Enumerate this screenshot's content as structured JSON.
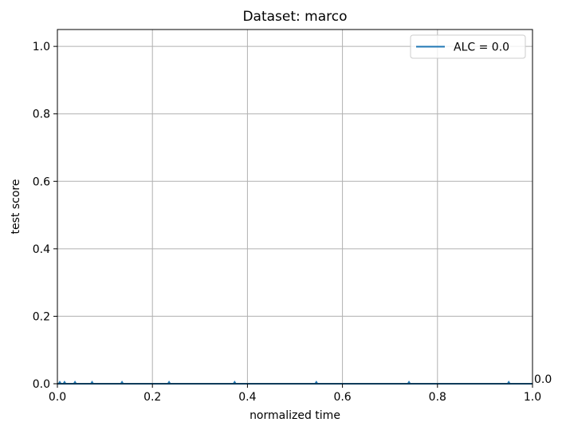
{
  "chart_data": {
    "type": "line",
    "title": "Dataset: marco",
    "xlabel": "normalized time",
    "ylabel": "test score",
    "xlim": [
      0.0,
      1.0
    ],
    "ylim": [
      0.0,
      1.05
    ],
    "x_ticks": [
      0.0,
      0.2,
      0.4,
      0.6,
      0.8,
      1.0
    ],
    "x_tick_labels": [
      "0.0",
      "0.2",
      "0.4",
      "0.6",
      "0.8",
      "1.0"
    ],
    "y_ticks": [
      0.0,
      0.2,
      0.4,
      0.6,
      0.8,
      1.0
    ],
    "y_tick_labels": [
      "0.0",
      "0.2",
      "0.4",
      "0.6",
      "0.8",
      "1.0"
    ],
    "grid": true,
    "legend_position": "top-right",
    "series": [
      {
        "name": "ALC = 0.0",
        "color": "#1f77b4",
        "marker": "triangle-up",
        "x": [
          0.0,
          0.005,
          0.015,
          0.037,
          0.073,
          0.136,
          0.235,
          0.373,
          0.545,
          0.74,
          0.95,
          1.0
        ],
        "y": [
          0.0,
          0.0,
          0.0,
          0.0,
          0.0,
          0.0,
          0.0,
          0.0,
          0.0,
          0.0,
          0.0,
          0.0
        ],
        "markers_x": [
          0.005,
          0.015,
          0.037,
          0.073,
          0.136,
          0.235,
          0.373,
          0.545,
          0.74,
          0.95
        ]
      }
    ],
    "annotations": [
      {
        "text": "0.0",
        "x": 1.0,
        "y": 0.0
      }
    ]
  }
}
